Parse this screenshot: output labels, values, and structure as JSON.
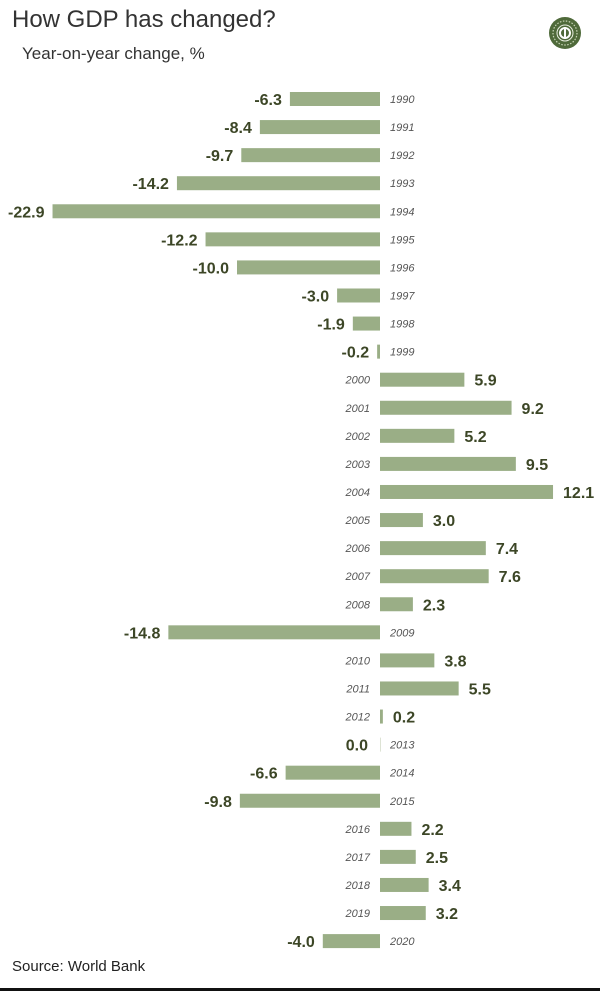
{
  "title": "How GDP has changed?",
  "subtitle": "Year-on-year change, %",
  "source": "Source: World Bank",
  "colors": {
    "bar": "#9aae86",
    "value_label": "#3c4626",
    "year_label": "#555555",
    "logo": "#4f6a3a"
  },
  "chart_data": {
    "type": "bar",
    "orientation": "horizontal",
    "title": "How GDP has changed?",
    "subtitle": "Year-on-year change, %",
    "categories": [
      "1990",
      "1991",
      "1992",
      "1993",
      "1994",
      "1995",
      "1996",
      "1997",
      "1998",
      "1999",
      "2000",
      "2001",
      "2002",
      "2003",
      "2004",
      "2005",
      "2006",
      "2007",
      "2008",
      "2009",
      "2010",
      "2011",
      "2012",
      "2013",
      "2014",
      "2015",
      "2016",
      "2017",
      "2018",
      "2019",
      "2020"
    ],
    "values": [
      -6.3,
      -8.4,
      -9.7,
      -14.2,
      -22.9,
      -12.2,
      -10.0,
      -3.0,
      -1.9,
      -0.2,
      5.9,
      9.2,
      5.2,
      9.5,
      12.1,
      3.0,
      7.4,
      7.6,
      2.3,
      -14.8,
      3.8,
      5.5,
      0.2,
      0.0,
      -6.6,
      -9.8,
      2.2,
      2.5,
      3.4,
      3.2,
      -4.0
    ],
    "labels": [
      "-6.3",
      "-8.4",
      "-9.7",
      "-14.2",
      "-22.9",
      "-12.2",
      "-10.0",
      "-3.0",
      "-1.9",
      "-0.2",
      "5.9",
      "9.2",
      "5.2",
      "9.5",
      "12.1",
      "3.0",
      "7.4",
      "7.6",
      "2.3",
      "-14.8",
      "3.8",
      "5.5",
      "0.2",
      "0.0",
      "-6.6",
      "-9.8",
      "2.2",
      "2.5",
      "3.4",
      "3.2",
      "-4.0"
    ],
    "xlabel": "",
    "ylabel": "",
    "grid": false,
    "legend": "none"
  }
}
